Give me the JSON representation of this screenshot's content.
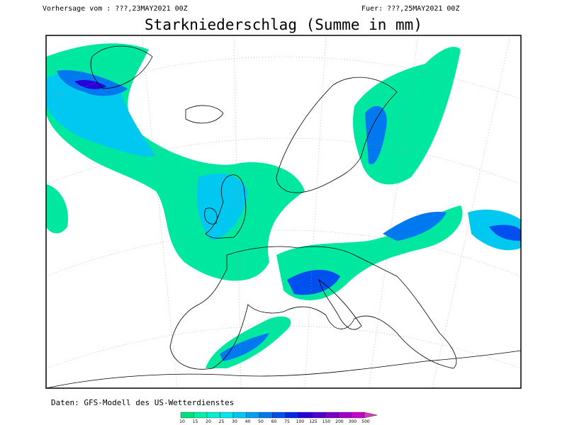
{
  "header": {
    "left": "Vorhersage vom : ???,23MAY2021 00Z",
    "right": "Fuer: ???,25MAY2021 00Z",
    "title": "Starkniederschlag (Summe in mm)"
  },
  "footer": {
    "source": "Daten: GFS-Modell des US-Wetterdienstes"
  },
  "colorbar": [
    {
      "value": 10,
      "color": "#00e07c"
    },
    {
      "value": 15,
      "color": "#00f0a8"
    },
    {
      "value": 20,
      "color": "#00f0d0"
    },
    {
      "value": 25,
      "color": "#00e6f0"
    },
    {
      "value": 30,
      "color": "#00c8f0"
    },
    {
      "value": 40,
      "color": "#00a0f0"
    },
    {
      "value": 50,
      "color": "#0078f0"
    },
    {
      "value": 60,
      "color": "#0050f0"
    },
    {
      "value": 75,
      "color": "#0028e6"
    },
    {
      "value": 100,
      "color": "#2800dc"
    },
    {
      "value": 125,
      "color": "#5000d2"
    },
    {
      "value": 150,
      "color": "#7800c8"
    },
    {
      "value": 200,
      "color": "#a000c8"
    },
    {
      "value": 300,
      "color": "#c800c8"
    },
    {
      "value": 500,
      "color": "#d23cb4"
    }
  ]
}
